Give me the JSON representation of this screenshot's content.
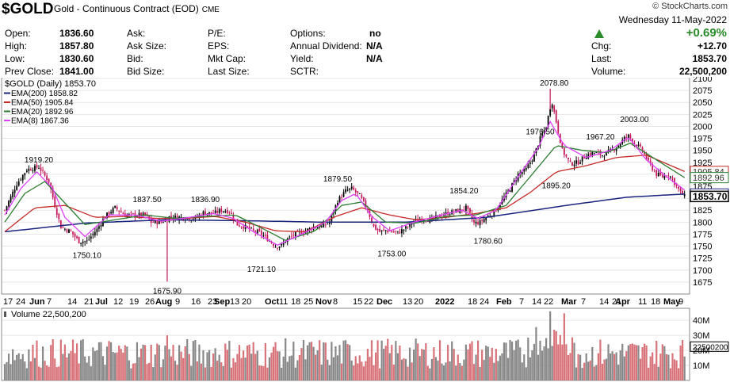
{
  "header": {
    "symbol": "$GOLD",
    "name": "Gold - Continuous Contract (EOD)",
    "exchange": "CME",
    "brand": "© StockCharts.com",
    "date": "Wednesday  11-May-2022",
    "change_pct": "+0.69%",
    "up_color": "#2a8a2a"
  },
  "quote": {
    "open_label": "Open:",
    "open": "1836.60",
    "high_label": "High:",
    "high": "1857.80",
    "low_label": "Low:",
    "low": "1830.60",
    "prev_label": "Prev Close:",
    "prev": "1841.00",
    "ask_label": "Ask:",
    "ask_size_label": "Ask Size:",
    "bid_label": "Bid:",
    "bid_size_label": "Bid Size:",
    "pe_label": "P/E:",
    "eps_label": "EPS:",
    "mktcap_label": "Mkt Cap:",
    "lastsize_label": "Last Size:",
    "options_label": "Options:",
    "options": "no",
    "div_label": "Annual Dividend:",
    "div": "N/A",
    "yield_label": "Yield:",
    "yield": "N/A",
    "sctr_label": "SCTR:",
    "chg_label": "Chg:",
    "chg": "+12.70",
    "last_label": "Last:",
    "last": "1853.70",
    "vol_label": "Volume:",
    "vol": "22,500,200"
  },
  "chart_data": {
    "type": "line",
    "price_legend": "$GOLD (Daily) 1853.70",
    "volume_legend": "Volume 22,500,200",
    "ema_legend": [
      {
        "label": "EMA(200) 1858.82",
        "color": "#1a237e"
      },
      {
        "label": "EMA(50) 1905.84",
        "color": "#c62828"
      },
      {
        "label": "EMA(20) 1892.96",
        "color": "#2e7d32"
      },
      {
        "label": "EMA(8) 1867.36",
        "color": "#e040fb"
      }
    ],
    "price_color": "#c2185b",
    "ylim": [
      1650,
      2100
    ],
    "y_ticks": [
      "1675",
      "1700",
      "1725",
      "1750",
      "1775",
      "1800",
      "1825",
      "1850",
      "1875",
      "1900",
      "1925",
      "1950",
      "1975",
      "2000",
      "2025",
      "2050",
      "2075",
      "2100"
    ],
    "x_labels": [
      "17",
      "24",
      "Jun",
      "7",
      "14",
      "21",
      "Jul",
      "12",
      "19",
      "26",
      "Aug",
      "9",
      "16",
      "23",
      "Sep",
      "13",
      "20",
      "Oct",
      "11",
      "18",
      "25",
      "Nov",
      "8",
      "15",
      "22",
      "Dec",
      "13",
      "20",
      "2022",
      "18",
      "24",
      "Feb",
      "7",
      "14",
      "22",
      "Mar",
      "7",
      "14",
      "21",
      "Apr",
      "11",
      "18",
      "May",
      "9"
    ],
    "annotations": [
      "1919.20",
      "1837.50",
      "1836.90",
      "1879.50",
      "1854.20",
      "1976.50",
      "2078.80",
      "1967.20",
      "2003.00",
      "1750.10",
      "1675.90",
      "1721.10",
      "1753.00",
      "1780.60",
      "1895.20"
    ],
    "price_tags": [
      {
        "value": "1905.84",
        "color": "#c62828"
      },
      {
        "value": "1892.96",
        "color": "#2e7d32"
      },
      {
        "value": "1858.82",
        "color": "#1a237e"
      },
      {
        "value": "1853.70",
        "color": "#000000"
      }
    ],
    "anchors": [
      [
        0,
        1825
      ],
      [
        6,
        1880
      ],
      [
        11,
        1910
      ],
      [
        17,
        1915
      ],
      [
        22,
        1885
      ],
      [
        25,
        1835
      ],
      [
        28,
        1790
      ],
      [
        33,
        1780
      ],
      [
        37,
        1760
      ],
      [
        41,
        1760
      ],
      [
        46,
        1785
      ],
      [
        50,
        1812
      ],
      [
        55,
        1830
      ],
      [
        60,
        1815
      ],
      [
        64,
        1815
      ],
      [
        70,
        1815
      ],
      [
        73,
        1800
      ],
      [
        78,
        1800
      ],
      [
        82,
        1811
      ],
      [
        88,
        1810
      ],
      [
        92,
        1808
      ],
      [
        95,
        1808
      ],
      [
        99,
        1820
      ],
      [
        104,
        1818
      ],
      [
        108,
        1825
      ],
      [
        112,
        1823
      ],
      [
        116,
        1795
      ],
      [
        120,
        1790
      ],
      [
        124,
        1781
      ],
      [
        127,
        1778
      ],
      [
        131,
        1765
      ],
      [
        135,
        1750
      ],
      [
        138,
        1751
      ],
      [
        141,
        1765
      ],
      [
        145,
        1775
      ],
      [
        150,
        1782
      ],
      [
        154,
        1790
      ],
      [
        158,
        1790
      ],
      [
        162,
        1800
      ],
      [
        166,
        1845
      ],
      [
        170,
        1865
      ],
      [
        173,
        1870
      ],
      [
        177,
        1855
      ],
      [
        181,
        1825
      ],
      [
        184,
        1790
      ],
      [
        187,
        1780
      ],
      [
        190,
        1783
      ],
      [
        193,
        1780
      ],
      [
        196,
        1778
      ],
      [
        201,
        1790
      ],
      [
        204,
        1802
      ],
      [
        209,
        1808
      ],
      [
        213,
        1805
      ],
      [
        218,
        1815
      ],
      [
        222,
        1820
      ],
      [
        227,
        1825
      ],
      [
        230,
        1830
      ],
      [
        232,
        1815
      ],
      [
        234,
        1798
      ],
      [
        237,
        1800
      ],
      [
        240,
        1810
      ],
      [
        244,
        1820
      ],
      [
        248,
        1845
      ],
      [
        252,
        1870
      ],
      [
        256,
        1900
      ],
      [
        260,
        1910
      ],
      [
        264,
        1940
      ],
      [
        267,
        1975
      ],
      [
        270,
        2000
      ],
      [
        272,
        2040
      ],
      [
        273,
        2050
      ],
      [
        276,
        1990
      ],
      [
        278,
        1950
      ],
      [
        282,
        1922
      ],
      [
        286,
        1925
      ],
      [
        290,
        1940
      ],
      [
        294,
        1945
      ],
      [
        298,
        1940
      ],
      [
        302,
        1948
      ],
      [
        306,
        1960
      ],
      [
        309,
        1975
      ],
      [
        311,
        1980
      ],
      [
        314,
        1965
      ],
      [
        318,
        1950
      ],
      [
        321,
        1925
      ],
      [
        325,
        1900
      ],
      [
        328,
        1895
      ],
      [
        331,
        1900
      ],
      [
        333,
        1890
      ],
      [
        335,
        1875
      ],
      [
        337,
        1862
      ],
      [
        339,
        1853.7
      ]
    ],
    "ema200": [
      [
        0,
        1780
      ],
      [
        40,
        1798
      ],
      [
        80,
        1805
      ],
      [
        120,
        1803
      ],
      [
        160,
        1800
      ],
      [
        200,
        1800
      ],
      [
        240,
        1810
      ],
      [
        280,
        1835
      ],
      [
        310,
        1852
      ],
      [
        339,
        1858.82
      ]
    ],
    "ema50": [
      [
        0,
        1780
      ],
      [
        15,
        1830
      ],
      [
        30,
        1835
      ],
      [
        45,
        1810
      ],
      [
        60,
        1812
      ],
      [
        75,
        1808
      ],
      [
        90,
        1808
      ],
      [
        105,
        1812
      ],
      [
        120,
        1800
      ],
      [
        135,
        1782
      ],
      [
        150,
        1780
      ],
      [
        165,
        1812
      ],
      [
        178,
        1830
      ],
      [
        192,
        1815
      ],
      [
        205,
        1805
      ],
      [
        220,
        1810
      ],
      [
        235,
        1818
      ],
      [
        250,
        1830
      ],
      [
        262,
        1862
      ],
      [
        275,
        1905
      ],
      [
        290,
        1918
      ],
      [
        305,
        1935
      ],
      [
        320,
        1940
      ],
      [
        339,
        1905.84
      ]
    ],
    "ema20": [
      [
        0,
        1800
      ],
      [
        10,
        1860
      ],
      [
        20,
        1885
      ],
      [
        30,
        1840
      ],
      [
        40,
        1795
      ],
      [
        55,
        1805
      ],
      [
        70,
        1815
      ],
      [
        85,
        1808
      ],
      [
        100,
        1812
      ],
      [
        115,
        1815
      ],
      [
        128,
        1788
      ],
      [
        140,
        1762
      ],
      [
        155,
        1782
      ],
      [
        168,
        1835
      ],
      [
        178,
        1842
      ],
      [
        190,
        1800
      ],
      [
        205,
        1798
      ],
      [
        220,
        1812
      ],
      [
        235,
        1815
      ],
      [
        250,
        1835
      ],
      [
        265,
        1910
      ],
      [
        275,
        1960
      ],
      [
        288,
        1950
      ],
      [
        300,
        1945
      ],
      [
        312,
        1965
      ],
      [
        325,
        1930
      ],
      [
        339,
        1892.96
      ]
    ],
    "ema8": [
      [
        0,
        1815
      ],
      [
        8,
        1870
      ],
      [
        16,
        1905
      ],
      [
        24,
        1870
      ],
      [
        30,
        1810
      ],
      [
        40,
        1770
      ],
      [
        52,
        1815
      ],
      [
        65,
        1815
      ],
      [
        78,
        1802
      ],
      [
        92,
        1810
      ],
      [
        104,
        1818
      ],
      [
        114,
        1808
      ],
      [
        124,
        1780
      ],
      [
        136,
        1752
      ],
      [
        148,
        1775
      ],
      [
        160,
        1800
      ],
      [
        168,
        1845
      ],
      [
        175,
        1860
      ],
      [
        183,
        1812
      ],
      [
        192,
        1782
      ],
      [
        204,
        1800
      ],
      [
        218,
        1815
      ],
      [
        228,
        1825
      ],
      [
        236,
        1808
      ],
      [
        245,
        1825
      ],
      [
        256,
        1895
      ],
      [
        266,
        1955
      ],
      [
        272,
        2010
      ],
      [
        279,
        1960
      ],
      [
        290,
        1935
      ],
      [
        302,
        1950
      ],
      [
        311,
        1978
      ],
      [
        320,
        1930
      ],
      [
        330,
        1895
      ],
      [
        339,
        1867.36
      ]
    ],
    "volume_ticks": [
      "40M",
      "30M",
      "22500200",
      "20M",
      "10M"
    ],
    "volume_max_m": 48
  }
}
